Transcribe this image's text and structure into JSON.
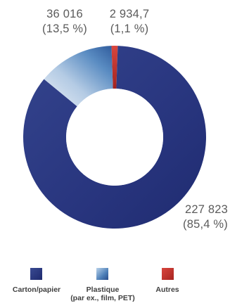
{
  "chart_data": {
    "type": "pie",
    "donut": true,
    "title": "",
    "slices": [
      {
        "category": "Carton/papier",
        "value": 227823,
        "value_label": "227 823",
        "percent_label": "(85,4 %)",
        "color": "#2a3784"
      },
      {
        "category": "Plastique",
        "category_note": "(par ex., film, PET)",
        "value": 36016,
        "value_label": "36 016",
        "percent_label": "(13,5 %)",
        "color": "#5e8fc2"
      },
      {
        "category": "Autres",
        "value": 2934.7,
        "value_label": "2 934,7",
        "percent_label": "(1,1 %)",
        "color": "#c8302c"
      }
    ],
    "percents": [
      85.4,
      13.5,
      1.1
    ],
    "legend": {
      "position": "bottom",
      "items": [
        {
          "label": "Carton/papier",
          "sublabel": "",
          "color": "#2a3784"
        },
        {
          "label": "Plastique",
          "sublabel": "(par ex., film, PET)",
          "color": "#5e8fc2"
        },
        {
          "label": "Autres",
          "sublabel": "",
          "color": "#c8302c"
        }
      ]
    }
  }
}
